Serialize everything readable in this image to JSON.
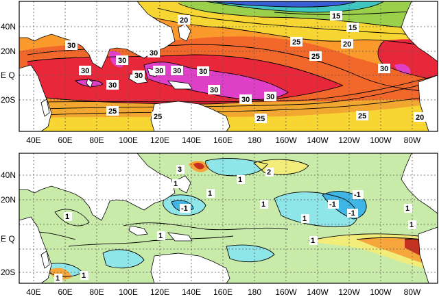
{
  "panels": [
    {
      "id": "sst-mean",
      "y_labels": [
        "40N",
        "20N",
        "E Q",
        "20S"
      ],
      "x_labels": [
        "40E",
        "60E",
        "80E",
        "100E",
        "120E",
        "140E",
        "160E",
        "180",
        "160W",
        "140W",
        "120W",
        "100W",
        "80W"
      ],
      "contour_labels": [
        "20",
        "15",
        "15",
        "30",
        "30",
        "30",
        "30",
        "30",
        "30",
        "30",
        "30",
        "25",
        "25",
        "20",
        "30",
        "30",
        "30",
        "30",
        "30",
        "25",
        "25",
        "25",
        "25",
        "20"
      ]
    },
    {
      "id": "sst-anomaly",
      "y_labels": [
        "40N",
        "20N",
        "E Q",
        "20S"
      ],
      "x_labels": [
        "40E",
        "60E",
        "80E",
        "100E",
        "120E",
        "140E",
        "160E",
        "180",
        "160W",
        "140W",
        "120W",
        "100W",
        "80W"
      ],
      "contour_labels": [
        "3",
        "1",
        "1",
        "1",
        "2",
        "-1",
        "1",
        "1",
        "-1",
        "-1",
        "1",
        "-1",
        "1",
        "1",
        "1",
        "1",
        "1",
        "1"
      ]
    }
  ],
  "colors": {
    "ocean_top_deep": "#e8283a",
    "ocean_top_warm": "#f2682a",
    "ocean_top_orange": "#fb9a2c",
    "ocean_top_yellow": "#f7d634",
    "ocean_top_green": "#9bd04c",
    "ocean_top_cyan": "#3fc6c0",
    "ocean_top_blue": "#3a60d8",
    "ocean_top_magenta": "#e040c8",
    "anom_base": "#c9eba9",
    "anom_cyan": "#8fe6e8",
    "anom_blue": "#3fb6e6",
    "anom_yellow": "#f2ec7a",
    "anom_orange": "#f6a63a",
    "anom_red": "#c83020"
  }
}
